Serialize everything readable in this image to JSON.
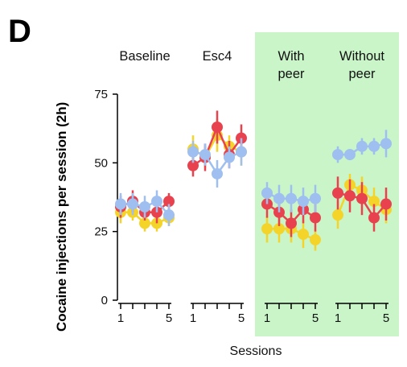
{
  "chart_data": {
    "type": "scatter",
    "panel_label": "D",
    "ylabel": "Cocaine injections per session (2h)",
    "xlabel": "Sessions",
    "ylim": [
      0,
      75
    ],
    "yticks": [
      0,
      25,
      50,
      75
    ],
    "highlight_color": "#c9f5c9",
    "series_colors": {
      "blue": "#9fbff0",
      "red": "#e8424f",
      "yellow": "#f5d42a"
    },
    "conditions": [
      {
        "label_lines": [
          "Baseline"
        ],
        "sessions": [
          1,
          2,
          3,
          4,
          5
        ],
        "tick_labels": [
          "1",
          "5"
        ],
        "highlighted": false,
        "series": [
          {
            "color": "yellow",
            "values": [
              32,
              32,
              28,
              28,
              30
            ],
            "errors": [
              4,
              3,
              3,
              3,
              3
            ]
          },
          {
            "color": "red",
            "values": [
              34,
              36,
              32,
              32,
              36
            ],
            "errors": [
              4,
              4,
              3,
              4,
              3
            ]
          },
          {
            "color": "blue",
            "values": [
              35,
              35,
              34,
              36,
              31
            ],
            "errors": [
              4,
              4,
              4,
              4,
              4
            ]
          }
        ]
      },
      {
        "label_lines": [
          "Esc4"
        ],
        "sessions": [
          1,
          2,
          3,
          4,
          5
        ],
        "tick_labels": [
          "1",
          "5"
        ],
        "highlighted": false,
        "series": [
          {
            "color": "yellow",
            "values": [
              55,
              52,
              60,
              56,
              54
            ],
            "errors": [
              5,
              4,
              6,
              4,
              5
            ]
          },
          {
            "color": "red",
            "values": [
              49,
              52,
              63,
              53,
              59
            ],
            "errors": [
              4,
              5,
              6,
              5,
              5
            ]
          },
          {
            "color": "blue",
            "values": [
              54,
              53,
              46,
              52,
              54
            ],
            "errors": [
              4,
              4,
              5,
              4,
              5
            ]
          }
        ]
      },
      {
        "label_lines": [
          "With",
          "peer"
        ],
        "sessions": [
          1,
          2,
          3,
          4,
          5
        ],
        "tick_labels": [
          "1",
          "5"
        ],
        "highlighted": true,
        "series": [
          {
            "color": "yellow",
            "values": [
              26,
              26,
              26,
              24,
              22
            ],
            "errors": [
              5,
              5,
              5,
              5,
              4
            ]
          },
          {
            "color": "red",
            "values": [
              35,
              32,
              28,
              33,
              30
            ],
            "errors": [
              5,
              5,
              5,
              5,
              5
            ]
          },
          {
            "color": "blue",
            "values": [
              39,
              37,
              37,
              36,
              37
            ],
            "errors": [
              4,
              5,
              5,
              5,
              5
            ]
          }
        ]
      },
      {
        "label_lines": [
          "Without",
          "peer"
        ],
        "sessions": [
          1,
          2,
          3,
          4,
          5
        ],
        "tick_labels": [
          "1",
          "5"
        ],
        "highlighted": true,
        "series": [
          {
            "color": "yellow",
            "values": [
              31,
              42,
              40,
              36,
              33
            ],
            "errors": [
              5,
              4,
              5,
              5,
              5
            ]
          },
          {
            "color": "red",
            "values": [
              39,
              38,
              37,
              30,
              35
            ],
            "errors": [
              6,
              6,
              6,
              5,
              6
            ]
          },
          {
            "color": "blue",
            "values": [
              53,
              53,
              56,
              56,
              57
            ],
            "errors": [
              3,
              2,
              3,
              3,
              5
            ]
          }
        ]
      }
    ]
  }
}
